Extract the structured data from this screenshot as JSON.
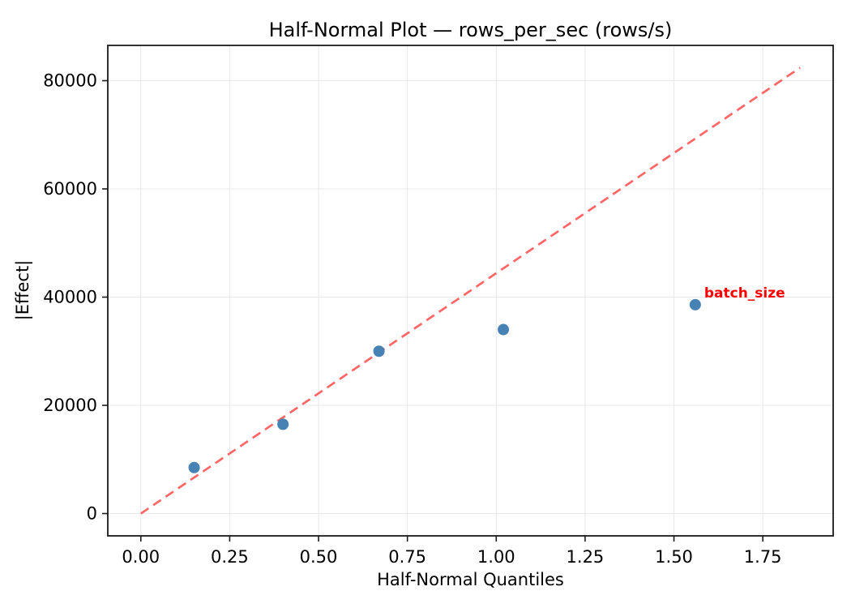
{
  "chart_data": {
    "type": "scatter",
    "title": "Half-Normal Plot — rows_per_sec (rows/s)",
    "xlabel": "Half-Normal Quantiles",
    "ylabel": "|Effect|",
    "xlim": [
      -0.093,
      1.948
    ],
    "ylim": [
      -4120,
      86520
    ],
    "xticks": [
      0.0,
      0.25,
      0.5,
      0.75,
      1.0,
      1.25,
      1.5,
      1.75
    ],
    "xtick_labels": [
      "0.00",
      "0.25",
      "0.50",
      "0.75",
      "1.00",
      "1.25",
      "1.50",
      "1.75"
    ],
    "yticks": [
      0,
      20000,
      40000,
      60000,
      80000
    ],
    "ytick_labels": [
      "0",
      "20000",
      "40000",
      "60000",
      "80000"
    ],
    "grid": true,
    "legend": null,
    "points": [
      {
        "x": 0.15,
        "y": 8500,
        "label": null
      },
      {
        "x": 0.4,
        "y": 16500,
        "label": null
      },
      {
        "x": 0.67,
        "y": 30000,
        "label": null
      },
      {
        "x": 1.02,
        "y": 34000,
        "label": null
      },
      {
        "x": 1.56,
        "y": 38600,
        "label": "batch_size"
      }
    ],
    "reference_line": {
      "x1": 0.0,
      "y1": 0,
      "x2": 1.855,
      "y2": 82400,
      "style": "dashed"
    },
    "colors": {
      "marker": "#4682b4",
      "reference_line": "#ff6666",
      "annotation": "#ff0000",
      "grid": "#e8e8e8",
      "spine": "#1a1a1a",
      "text": "#000000",
      "background": "#ffffff"
    }
  }
}
